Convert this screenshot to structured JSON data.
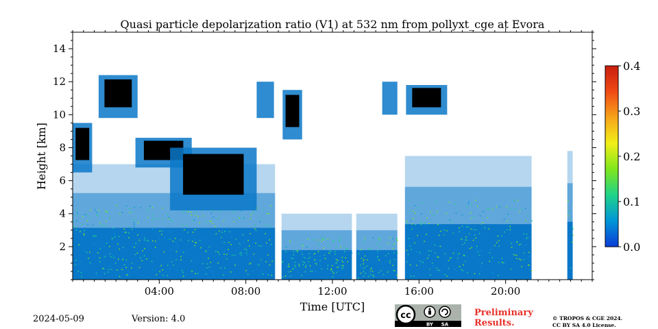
{
  "chart_data": {
    "type": "heatmap",
    "title": "Quasi particle depolarization ratio (V1) at 532 nm from pollyxt_cge at Evora",
    "xlabel": "Time [UTC]",
    "ylabel": "Height [km]",
    "x_unit": "hours UTC",
    "xlim": [
      0,
      24
    ],
    "ylim": [
      0,
      15
    ],
    "x_ticks": [
      {
        "value": 4,
        "label": "04:00"
      },
      {
        "value": 8,
        "label": "08:00"
      },
      {
        "value": 12,
        "label": "12:00"
      },
      {
        "value": 16,
        "label": "16:00"
      },
      {
        "value": 20,
        "label": "20:00"
      }
    ],
    "y_ticks": [
      {
        "value": 2,
        "label": "2"
      },
      {
        "value": 4,
        "label": "4"
      },
      {
        "value": 6,
        "label": "6"
      },
      {
        "value": 8,
        "label": "8"
      },
      {
        "value": 10,
        "label": "10"
      },
      {
        "value": 12,
        "label": "12"
      },
      {
        "value": 14,
        "label": "14"
      }
    ],
    "colorbar": {
      "min": 0.0,
      "max": 0.4,
      "ticks": [
        {
          "value": 0.0,
          "label": "0.0"
        },
        {
          "value": 0.1,
          "label": "0.1"
        },
        {
          "value": 0.2,
          "label": "0.2"
        },
        {
          "value": 0.3,
          "label": "0.3"
        },
        {
          "value": 0.4,
          "label": "0.4"
        }
      ],
      "colormap": [
        "#0a3cd6",
        "#0096d8",
        "#1fd38a",
        "#7fe61c",
        "#f2ef18",
        "#f7a41a",
        "#f04a14",
        "#c81e0e"
      ]
    },
    "masked_color": "#000000",
    "typical_value": 0.05,
    "typical_color": "#0a78c8",
    "data_gaps_hours": [
      [
        9.35,
        9.65
      ],
      [
        12.9,
        13.1
      ],
      [
        15.0,
        15.35
      ],
      [
        21.2,
        22.85
      ],
      [
        23.1,
        24.0
      ]
    ],
    "segments": [
      {
        "start": 0.0,
        "end": 9.35,
        "top_km": 7.0
      },
      {
        "start": 9.65,
        "end": 12.9,
        "top_km": 4.0
      },
      {
        "start": 13.1,
        "end": 15.0,
        "top_km": 4.0
      },
      {
        "start": 15.35,
        "end": 21.2,
        "top_km": 7.5
      },
      {
        "start": 22.85,
        "end": 23.1,
        "top_km": 7.8
      }
    ],
    "cloud_features": [
      {
        "start": 0.0,
        "end": 0.9,
        "bottom_km": 6.5,
        "top_km": 9.5,
        "masked": true
      },
      {
        "start": 1.2,
        "end": 3.0,
        "bottom_km": 9.8,
        "top_km": 12.4,
        "masked": true
      },
      {
        "start": 2.9,
        "end": 5.5,
        "bottom_km": 6.8,
        "top_km": 8.6,
        "masked": true
      },
      {
        "start": 4.5,
        "end": 8.5,
        "bottom_km": 4.2,
        "top_km": 8.0,
        "masked": true
      },
      {
        "start": 8.5,
        "end": 9.3,
        "bottom_km": 9.8,
        "top_km": 12.0,
        "masked": false
      },
      {
        "start": 9.7,
        "end": 10.6,
        "bottom_km": 8.5,
        "top_km": 11.5,
        "masked": true
      },
      {
        "start": 14.3,
        "end": 15.0,
        "bottom_km": 10.0,
        "top_km": 12.0,
        "masked": false
      },
      {
        "start": 15.4,
        "end": 17.3,
        "bottom_km": 10.0,
        "top_km": 11.8,
        "masked": true
      }
    ]
  },
  "footer": {
    "date": "2024-05-09",
    "version": "Version: 4.0",
    "preliminary_line1": "Preliminary",
    "preliminary_line2": "Results.",
    "copyright_line1": "© TROPOS & CGE 2024.",
    "copyright_line2": "CC BY SA 4.0 License.",
    "license_badge": {
      "main": "cc",
      "by": "BY",
      "sa": "SA"
    }
  }
}
